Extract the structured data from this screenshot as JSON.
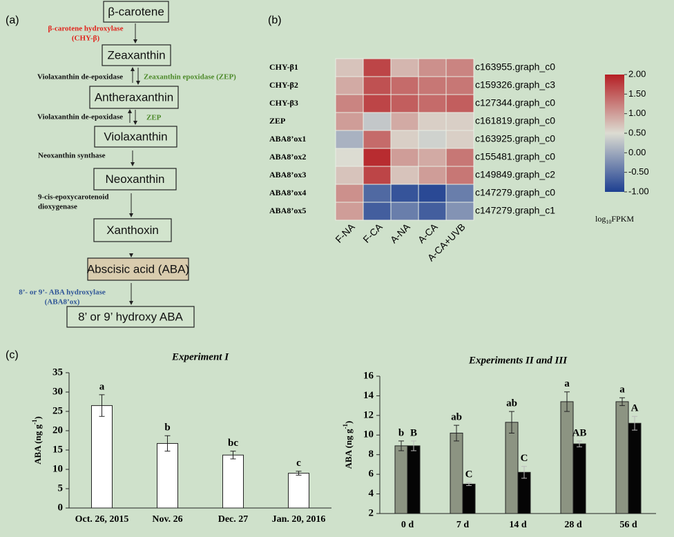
{
  "panel_labels": [
    "(a)",
    "(b)",
    "(c)"
  ],
  "pathway": {
    "compounds": [
      "β-carotene",
      "Zeaxanthin",
      "Antheraxanthin",
      "Violaxanthin",
      "Neoxanthin",
      "Xanthoxin",
      "Abscisic acid (ABA)",
      "8’ or 9’ hydroxy ABA"
    ],
    "enzymes": [
      {
        "lines": [
          "β-carotene hydroxylase",
          "(CHY-β)"
        ],
        "color": "#e0241c"
      },
      {
        "lines": [
          "Violaxanthin de-epoxidase"
        ],
        "color": "#111111"
      },
      {
        "lines": [
          "Zeaxanthin epoxidase (ZEP)"
        ],
        "color": "#4d8a2a"
      },
      {
        "lines": [
          "Violaxanthin de-epoxidase"
        ],
        "color": "#111111"
      },
      {
        "lines": [
          "ZEP"
        ],
        "color": "#4d8a2a"
      },
      {
        "lines": [
          "Neoxanthin synthase"
        ],
        "color": "#111111"
      },
      {
        "lines": [
          "9-cis-epoxycarotenoid",
          "dioxygenase"
        ],
        "color": "#111111"
      },
      {
        "lines": [
          "8’- or 9’- ABA hydroxylase",
          "(ABA8’ox)"
        ],
        "color": "#2f5597"
      }
    ]
  },
  "chart_data": [
    {
      "type": "heatmap",
      "rows": [
        "CHY-β1",
        "CHY-β2",
        "CHY-β3",
        "ZEP",
        "ABA8’ox1",
        "ABA8’ox2",
        "ABA8’ox3",
        "ABA8’ox4",
        "ABA8’ox5"
      ],
      "gene_ids": [
        "c163955.graph_c0",
        "c159326.graph_c3",
        "c127344.graph_c0",
        "c161819.graph_c0",
        "c163925.graph_c0",
        "c155481.graph_c0",
        "c149849.graph_c2",
        "c147279.graph_c0",
        "c147279.graph_c1"
      ],
      "columns": [
        "F-NA",
        "F-CA",
        "A-NA",
        "A-CA",
        "A-CA+UVB"
      ],
      "values": [
        [
          0.7,
          1.7,
          0.8,
          1.1,
          1.2
        ],
        [
          0.9,
          1.6,
          1.4,
          1.3,
          1.3
        ],
        [
          1.2,
          1.7,
          1.5,
          1.4,
          1.5
        ],
        [
          1.0,
          0.3,
          0.9,
          0.6,
          0.6
        ],
        [
          0.1,
          1.4,
          0.6,
          0.4,
          0.6
        ],
        [
          0.5,
          1.9,
          1.0,
          0.9,
          1.3
        ],
        [
          0.7,
          1.7,
          0.7,
          1.0,
          1.3
        ],
        [
          1.1,
          -0.6,
          -0.8,
          -0.9,
          -0.4
        ],
        [
          1.0,
          -0.7,
          -0.4,
          -0.7,
          -0.2
        ]
      ],
      "zlim": [
        -1,
        2
      ],
      "colors": [
        "#1d3f91",
        "#dcdcd2",
        "#b51f24"
      ],
      "zticks": [
        {
          "value": 2,
          "label": "2.00"
        },
        {
          "value": 1.5,
          "label": "1.50"
        },
        {
          "value": 1,
          "label": "1.00"
        },
        {
          "value": 0.5,
          "label": "0.50"
        },
        {
          "value": 0,
          "label": "0.00"
        },
        {
          "value": -0.5,
          "label": "-0.50"
        },
        {
          "value": -1,
          "label": "-1.00"
        }
      ],
      "colorbar_label": {
        "text": "log",
        "sub": "10",
        "end": "FPKM"
      }
    },
    {
      "type": "bar",
      "title": "Experiment I",
      "y_label": {
        "text": "ABA (ng g",
        "sup": "-1",
        "end": ")"
      },
      "categories": [
        "Oct. 26, 2015",
        "Nov. 26",
        "Dec. 27",
        "Jan. 20, 2016"
      ],
      "values": [
        26.5,
        16.7,
        13.7,
        9.0
      ],
      "errors": [
        2.8,
        2.0,
        1.0,
        0.5
      ],
      "annotations": [
        "a",
        "b",
        "bc",
        "c"
      ],
      "color": "#ffffff",
      "ylim": [
        0,
        35
      ],
      "yticks": [
        0,
        5,
        10,
        15,
        20,
        25,
        30,
        35
      ]
    },
    {
      "type": "bar",
      "title": "Experiments II and III",
      "y_label": {
        "text": "ABA (ng g",
        "sup": "-1",
        "end": ")"
      },
      "categories": [
        "0 d",
        "7 d",
        "14 d",
        "28 d",
        "56 d"
      ],
      "series": [
        {
          "color": "#8c9482",
          "values": [
            8.9,
            10.2,
            11.3,
            13.4,
            13.4
          ],
          "errors": [
            0.5,
            0.8,
            1.1,
            1.0,
            0.4
          ],
          "annotations": [
            "b",
            "ab",
            "ab",
            "a",
            "a"
          ]
        },
        {
          "color": "#050505",
          "values": [
            8.9,
            5.0,
            6.2,
            9.1,
            11.2
          ],
          "errors": [
            0.5,
            0.15,
            0.6,
            0.3,
            0.7
          ],
          "annotations": [
            "B",
            "C",
            "C",
            "AB",
            "A"
          ]
        }
      ],
      "ylim": [
        2,
        16
      ],
      "yticks": [
        2,
        4,
        6,
        8,
        10,
        12,
        14,
        16
      ]
    }
  ]
}
